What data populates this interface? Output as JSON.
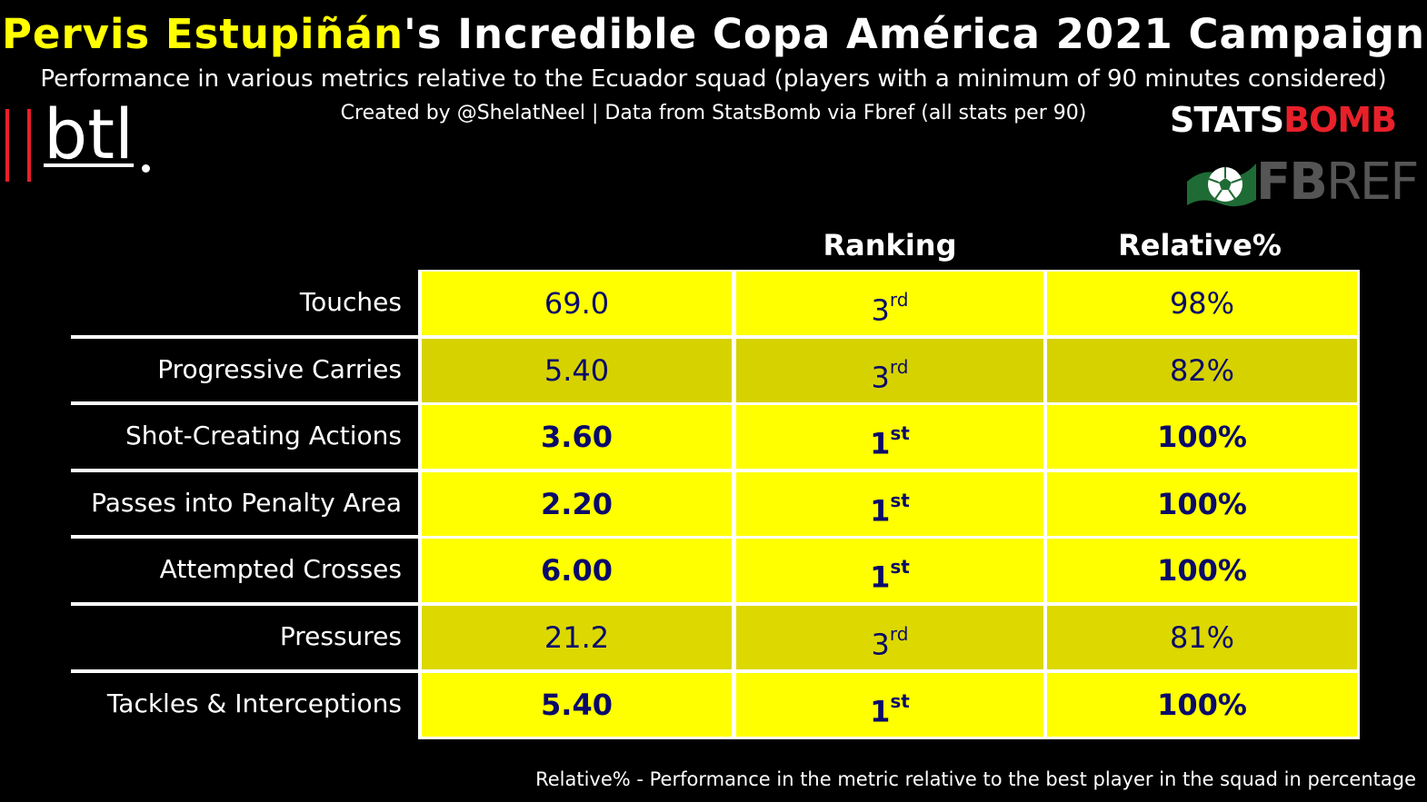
{
  "header": {
    "title_player": "Pervis Estupiñán",
    "title_rest": "'s Incredible Copa América 2021 Campaign",
    "subtitle": "Performance in various metrics relative to the Ecuador squad (players with a minimum of 90 minutes considered)",
    "credit": "Created by @ShelatNeel | Data from StatsBomb via Fbref (all stats per 90)",
    "accent_color": "#ffff00"
  },
  "logos": {
    "btl_text": "btl",
    "statsbomb_white": "STATS",
    "statsbomb_red": "BOMB",
    "fbref_bold": "FB",
    "fbref_rest": "REF"
  },
  "footnote": "Relative% - Performance in the metric relative to the best player in the squad in percentage",
  "chart_data": {
    "type": "table",
    "columns": [
      "",
      "Ranking",
      "Relative%"
    ],
    "rows": [
      {
        "metric": "Touches",
        "value": "69.0",
        "rank_num": "3",
        "rank_suffix": "rd",
        "relative": "98%",
        "highlight": false,
        "color": "#ffff00"
      },
      {
        "metric": "Progressive Carries",
        "value": "5.40",
        "rank_num": "3",
        "rank_suffix": "rd",
        "relative": "82%",
        "highlight": false,
        "color": "#d6d200"
      },
      {
        "metric": "Shot-Creating Actions",
        "value": "3.60",
        "rank_num": "1",
        "rank_suffix": "st",
        "relative": "100%",
        "highlight": true,
        "color": "#ffff00"
      },
      {
        "metric": "Passes into Penalty Area",
        "value": "2.20",
        "rank_num": "1",
        "rank_suffix": "st",
        "relative": "100%",
        "highlight": true,
        "color": "#ffff00"
      },
      {
        "metric": "Attempted Crosses",
        "value": "6.00",
        "rank_num": "1",
        "rank_suffix": "st",
        "relative": "100%",
        "highlight": true,
        "color": "#ffff00"
      },
      {
        "metric": "Pressures",
        "value": "21.2",
        "rank_num": "3",
        "rank_suffix": "rd",
        "relative": "81%",
        "highlight": false,
        "color": "#dcd800"
      },
      {
        "metric": "Tackles & Interceptions",
        "value": "5.40",
        "rank_num": "1",
        "rank_suffix": "st",
        "relative": "100%",
        "highlight": true,
        "color": "#ffff00"
      }
    ]
  }
}
